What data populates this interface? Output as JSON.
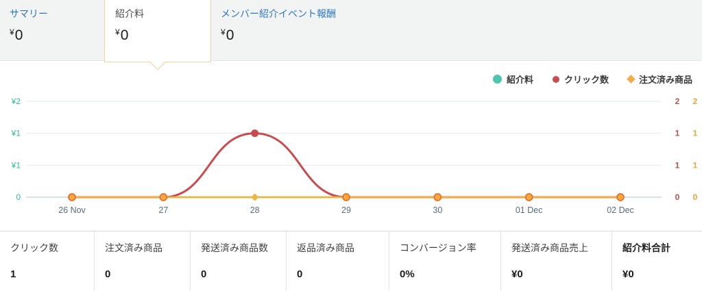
{
  "tabs": {
    "summary": {
      "label": "サマリー",
      "currency": "¥",
      "value": "0"
    },
    "referral": {
      "label": "紹介料",
      "currency": "¥",
      "value": "0"
    },
    "member": {
      "label": "メンバー紹介イベント報酬",
      "currency": "¥",
      "value": "0"
    }
  },
  "legend": [
    {
      "label": "紹介料",
      "color": "#4cc7ae",
      "shape": "circle"
    },
    {
      "label": "クリック数",
      "color": "#c94b4f",
      "shape": "circle"
    },
    {
      "label": "注文済み商品",
      "color": "#f0ad4e",
      "shape": "diamond"
    }
  ],
  "chart_data": {
    "type": "line",
    "x_labels": [
      "26 Nov",
      "27",
      "28",
      "29",
      "30",
      "01 Dec",
      "02 Dec"
    ],
    "series": [
      {
        "name": "紹介料",
        "color": "#4cc7ae",
        "values": [
          0,
          0,
          0,
          0,
          0,
          0,
          0
        ]
      },
      {
        "name": "クリック数",
        "color": "#cb4a4d",
        "values": [
          0,
          0,
          1,
          0,
          0,
          0,
          0
        ]
      },
      {
        "name": "注文済み商品",
        "color": "#f2b33e",
        "values": [
          0,
          0,
          0,
          0,
          0,
          0,
          0
        ]
      }
    ],
    "y_max": 1.5,
    "grid": true,
    "legend_position": "top-right",
    "left_axis": {
      "ticks": [
        "¥2",
        "¥1",
        "¥1",
        "0"
      ],
      "color": "#2fb89e"
    },
    "right_axis_clicks": {
      "ticks": [
        "2",
        "1",
        "1",
        "0"
      ],
      "color": "#c0504d"
    },
    "right_axis_orders": {
      "ticks": [
        "2",
        "1",
        "1",
        "0"
      ],
      "color": "#e8a33d"
    },
    "x_label_color": "#5a6b7c",
    "gridline_color": "#e6e7e9",
    "baseline_color": "#ccd7df",
    "zero_marker": {
      "fill": "#f6a73d",
      "stroke": "#e2702a"
    }
  },
  "table": {
    "columns": [
      {
        "header": "クリック数",
        "value": "1"
      },
      {
        "header": "注文済み商品",
        "value": "0"
      },
      {
        "header": "発送済み商品数",
        "value": "0"
      },
      {
        "header": "返品済み商品",
        "value": "0"
      },
      {
        "header": "コンバージョン率",
        "value": "0%"
      },
      {
        "header": "発送済み商品売上",
        "value": "¥0"
      },
      {
        "header": "紹介料合計",
        "value": "¥0"
      }
    ]
  }
}
